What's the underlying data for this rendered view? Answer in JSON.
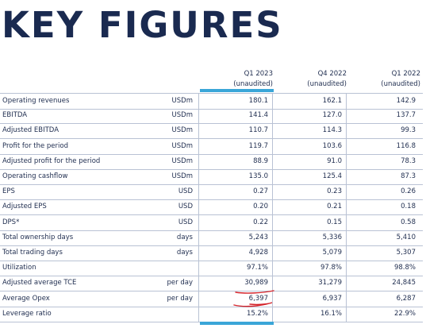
{
  "title": "KEY FIGURES",
  "columns": [
    {
      "period": "Q1 2023",
      "note": "(unaudited)"
    },
    {
      "period": "Q4 2022",
      "note": "(unaudited)"
    },
    {
      "period": "Q1 2022",
      "note": "(unaudited)"
    }
  ],
  "rows": [
    {
      "label": "Operating revenues",
      "unit": "USDm",
      "v1": "180.1",
      "v2": "162.1",
      "v3": "142.9"
    },
    {
      "label": "EBITDA",
      "unit": "USDm",
      "v1": "141.4",
      "v2": "127.0",
      "v3": "137.7"
    },
    {
      "label": "Adjusted EBITDA",
      "unit": "USDm",
      "v1": "110.7",
      "v2": "114.3",
      "v3": "99.3"
    },
    {
      "label": "Profit for the period",
      "unit": "USDm",
      "v1": "119.7",
      "v2": "103.6",
      "v3": "116.8"
    },
    {
      "label": "Adjusted profit for the period",
      "unit": "USDm",
      "v1": "88.9",
      "v2": "91.0",
      "v3": "78.3"
    },
    {
      "label": "Operating cashflow",
      "unit": "USDm",
      "v1": "135.0",
      "v2": "125.4",
      "v3": "87.3"
    },
    {
      "label": "EPS",
      "unit": "USD",
      "v1": "0.27",
      "v2": "0.23",
      "v3": "0.26"
    },
    {
      "label": "Adjusted EPS",
      "unit": "USD",
      "v1": "0.20",
      "v2": "0.21",
      "v3": "0.18"
    },
    {
      "label": "DPS*",
      "unit": "USD",
      "v1": "0.22",
      "v2": "0.15",
      "v3": "0.58"
    },
    {
      "label": "Total ownership days",
      "unit": "days",
      "v1": "5,243",
      "v2": "5,336",
      "v3": "5,410"
    },
    {
      "label": "Total trading days",
      "unit": "days",
      "v1": "4,928",
      "v2": "5,079",
      "v3": "5,307"
    },
    {
      "label": "Utilization",
      "unit": "",
      "v1": "97.1%",
      "v2": "97.8%",
      "v3": "98.8%"
    },
    {
      "label": "Adjusted average TCE",
      "unit": "per day",
      "v1": "30,989",
      "v2": "31,279",
      "v3": "24,845"
    },
    {
      "label": "Average Opex",
      "unit": "per day",
      "v1": "6,397",
      "v2": "6,937",
      "v3": "6,287"
    },
    {
      "label": "Leverage ratio",
      "unit": "",
      "v1": "15.2%",
      "v2": "16.1%",
      "v3": "22.9%"
    }
  ],
  "colors": {
    "title": "#1a2a50",
    "accent": "#3aa6d8",
    "annotation": "#d4232a",
    "rule": "#b9c2d4"
  }
}
